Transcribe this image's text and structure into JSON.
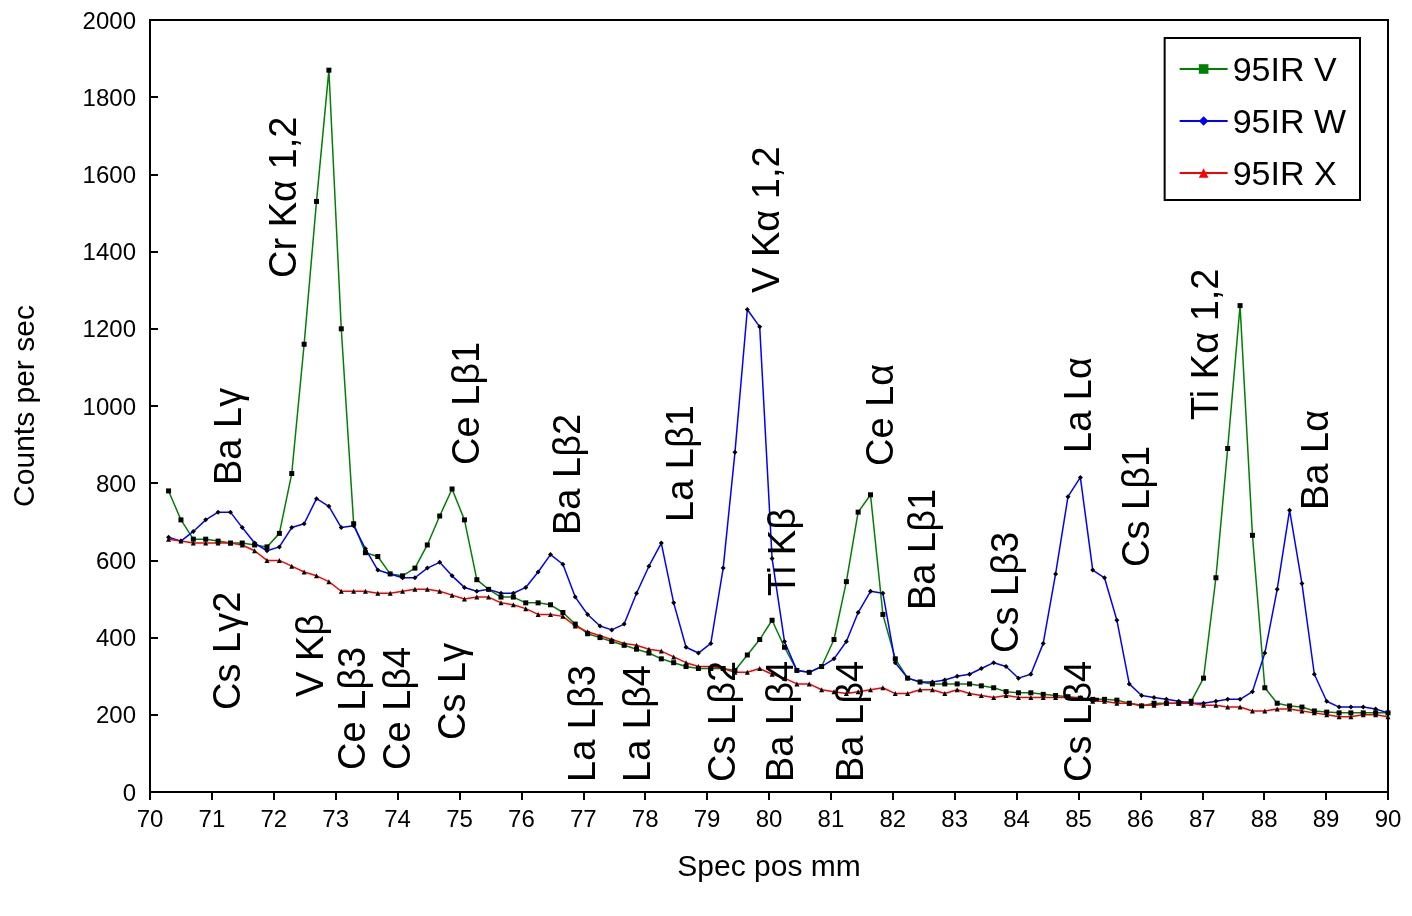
{
  "chart_data": {
    "type": "line",
    "xlabel": "Spec pos mm",
    "ylabel": "Counts per sec",
    "x": [
      70.3,
      70.5,
      70.7,
      70.9,
      71.1,
      71.3,
      71.49,
      71.69,
      71.89,
      72.09,
      72.29,
      72.49,
      72.69,
      72.89,
      73.09,
      73.29,
      73.48,
      73.68,
      73.88,
      74.08,
      74.28,
      74.48,
      74.68,
      74.88,
      75.08,
      75.28,
      75.47,
      75.67,
      75.87,
      76.07,
      76.27,
      76.47,
      76.67,
      76.87,
      77.07,
      77.27,
      77.46,
      77.66,
      77.86,
      78.06,
      78.26,
      78.46,
      78.66,
      78.86,
      79.06,
      79.26,
      79.45,
      79.65,
      79.85,
      80.05,
      80.25,
      80.45,
      80.65,
      80.85,
      81.05,
      81.25,
      81.44,
      81.64,
      81.84,
      82.04,
      82.24,
      82.44,
      82.64,
      82.84,
      83.04,
      83.24,
      83.43,
      83.63,
      83.83,
      84.03,
      84.23,
      84.43,
      84.63,
      84.83,
      85.03,
      85.23,
      85.42,
      85.62,
      85.82,
      86.02,
      86.22,
      86.42,
      86.62,
      86.82,
      87.02,
      87.22,
      87.41,
      87.61,
      87.81,
      88.01,
      88.21,
      88.41,
      88.61,
      88.81,
      89.01,
      89.21,
      89.4,
      89.6,
      89.8,
      90.0
    ],
    "series": [
      {
        "name": "95IR V",
        "color": "#008000",
        "marker": "square",
        "values": [
          780,
          705,
          655,
          655,
          650,
          645,
          645,
          640,
          635,
          670,
          825,
          1160,
          1530,
          1870,
          1200,
          695,
          620,
          610,
          565,
          560,
          580,
          640,
          715,
          785,
          705,
          550,
          525,
          505,
          505,
          490,
          490,
          485,
          465,
          435,
          410,
          400,
          390,
          380,
          370,
          360,
          345,
          335,
          325,
          320,
          320,
          320,
          315,
          355,
          395,
          445,
          375,
          315,
          310,
          325,
          395,
          545,
          725,
          770,
          460,
          345,
          295,
          285,
          280,
          280,
          280,
          280,
          275,
          270,
          260,
          257,
          257,
          253,
          250,
          247,
          243,
          240,
          240,
          238,
          230,
          223,
          230,
          230,
          230,
          235,
          295,
          555,
          890,
          1260,
          665,
          270,
          230,
          223,
          220,
          210,
          207,
          205,
          205,
          205,
          205,
          205
        ]
      },
      {
        "name": "95IR W",
        "color": "#0000ff",
        "marker": "diamond",
        "values": [
          660,
          650,
          675,
          705,
          725,
          725,
          685,
          645,
          625,
          635,
          685,
          695,
          760,
          740,
          685,
          690,
          630,
          575,
          565,
          555,
          555,
          580,
          595,
          560,
          530,
          520,
          525,
          515,
          515,
          530,
          570,
          615,
          590,
          505,
          460,
          430,
          420,
          435,
          515,
          585,
          645,
          490,
          375,
          360,
          385,
          580,
          880,
          1250,
          1205,
          605,
          390,
          315,
          310,
          325,
          345,
          390,
          465,
          520,
          515,
          335,
          295,
          285,
          285,
          290,
          300,
          305,
          320,
          335,
          325,
          295,
          305,
          385,
          565,
          765,
          815,
          575,
          555,
          445,
          280,
          250,
          245,
          240,
          235,
          230,
          230,
          235,
          240,
          240,
          260,
          360,
          525,
          730,
          540,
          305,
          235,
          220,
          220,
          220,
          215,
          205
        ]
      },
      {
        "name": "95IR X",
        "color": "#ff0000",
        "marker": "triangle",
        "values": [
          655,
          650,
          645,
          645,
          645,
          645,
          640,
          625,
          600,
          600,
          585,
          570,
          560,
          545,
          520,
          520,
          520,
          515,
          515,
          520,
          525,
          525,
          520,
          510,
          500,
          505,
          505,
          490,
          485,
          475,
          460,
          460,
          455,
          430,
          415,
          405,
          395,
          385,
          380,
          370,
          365,
          350,
          335,
          325,
          325,
          320,
          310,
          310,
          320,
          305,
          295,
          280,
          280,
          265,
          260,
          255,
          260,
          265,
          270,
          255,
          255,
          265,
          265,
          255,
          265,
          255,
          250,
          245,
          250,
          245,
          245,
          245,
          245,
          245,
          245,
          235,
          235,
          230,
          230,
          225,
          225,
          230,
          230,
          230,
          225,
          225,
          220,
          220,
          210,
          210,
          215,
          215,
          210,
          205,
          200,
          195,
          195,
          200,
          200,
          195
        ]
      }
    ],
    "xlim": [
      70,
      90
    ],
    "xticks": [
      70,
      71,
      72,
      73,
      74,
      75,
      76,
      77,
      78,
      79,
      80,
      81,
      82,
      83,
      84,
      85,
      86,
      87,
      88,
      89,
      90
    ],
    "ylim": [
      0,
      2000
    ],
    "yticks": [
      0,
      200,
      400,
      600,
      800,
      1000,
      1200,
      1400,
      1600,
      1800,
      2000
    ],
    "grid": false,
    "legend": "top right",
    "line_style": "solid",
    "annotations": [
      "Ba Lγ",
      "Cr Kα 1,2",
      "Ce Lβ1",
      "Ba Lβ2",
      "La Lβ1",
      "V Kα 1,2",
      "Ti Kβ",
      "Ce Lα",
      "Ba Lβ1",
      "Cs Lβ3",
      "La Lα",
      "Cs Lβ1",
      "Ti Kα 1,2",
      "Ba Lα",
      "Cs Lγ2",
      "V Kβ",
      "Ce Lβ3",
      "Ce Lβ4",
      "Cs Lγ",
      "La Lβ3",
      "La Lβ4",
      "Cs Lβ2",
      "Ba Lβ4",
      "Ba Lβ4",
      "Cs Lβ4"
    ]
  }
}
